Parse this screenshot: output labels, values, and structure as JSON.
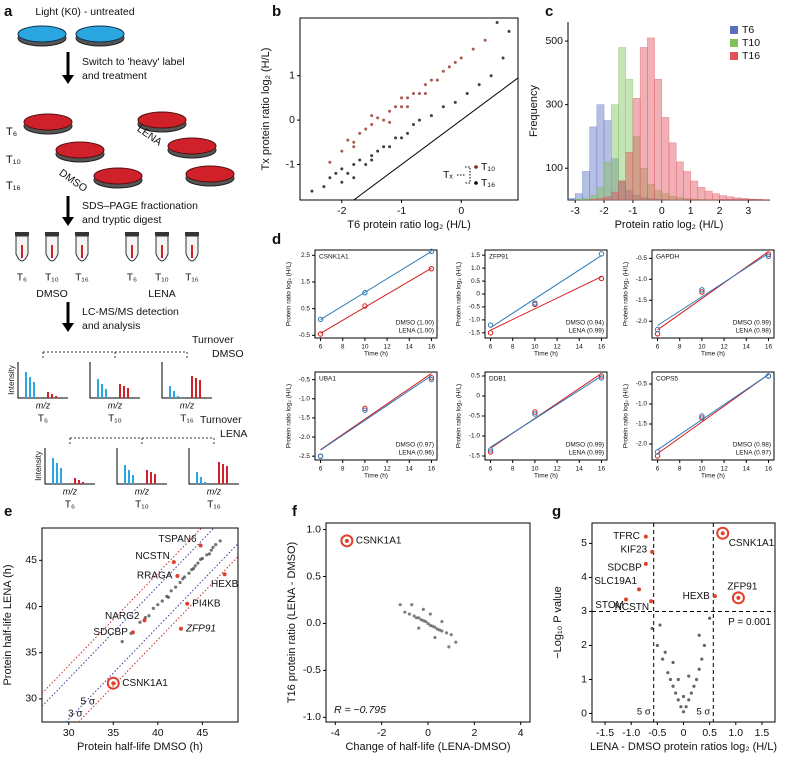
{
  "panel_labels": [
    "a",
    "b",
    "c",
    "d",
    "e",
    "f",
    "g"
  ],
  "diagram": {
    "step1": "Light (K0) - untreated",
    "step2": [
      "Switch to 'heavy' label",
      "and treatment"
    ],
    "timepoints": [
      "T₆",
      "T₁₀",
      "T₁₆"
    ],
    "treatments": [
      "DMSO",
      "LENA"
    ],
    "step3": [
      "SDS–PAGE fractionation",
      "and tryptic digest"
    ],
    "step4": [
      "LC-MS/MS detection",
      "and analysis"
    ],
    "turnover_dmso": [
      "Turnover",
      "DMSO"
    ],
    "turnover_lena": [
      "Turnover",
      "LENA"
    ],
    "spectrum_ylabel": "Intensity",
    "spectrum_xlabel": "m/z"
  },
  "chart_data": [
    {
      "type": "scatter",
      "xlabel": "T6 protein ratio log₂ (H/L)",
      "ylabel": "Tx protein ratio log₂ (H/L)",
      "xlim": [
        -2.7,
        0.95
      ],
      "ylim": [
        -1.8,
        2.3
      ],
      "xticks": [
        -2,
        -1,
        0
      ],
      "yticks": [
        -1,
        0,
        1
      ],
      "diagonal": true,
      "legend_title": "Tₓ",
      "series": [
        {
          "name": "T₁₀",
          "color": "#8b2414",
          "x": [
            -2.2,
            -2.0,
            -1.9,
            -1.8,
            -1.7,
            -1.6,
            -1.5,
            -1.4,
            -1.3,
            -1.2,
            -1.1,
            -1.0,
            -0.9,
            -0.8,
            -0.7,
            -0.6,
            -0.5,
            -0.4,
            -0.3,
            -0.2,
            -0.1,
            0.0,
            0.2,
            0.4,
            -1.5,
            -1.2,
            -0.9,
            -1.8,
            -0.6,
            -1.0
          ],
          "values": [
            -0.95,
            -0.7,
            -0.45,
            -0.5,
            -0.3,
            -0.2,
            -0.1,
            0.05,
            0.0,
            0.2,
            0.3,
            0.3,
            0.5,
            0.6,
            0.6,
            0.8,
            0.9,
            0.9,
            1.1,
            1.2,
            1.3,
            1.4,
            1.6,
            1.8,
            0.1,
            -0.05,
            0.3,
            -0.6,
            0.6,
            0.5
          ]
        },
        {
          "name": "T₁₆",
          "color": "#000000",
          "x": [
            -2.5,
            -2.3,
            -2.2,
            -2.1,
            -2.0,
            -1.9,
            -1.8,
            -1.7,
            -1.6,
            -1.5,
            -1.4,
            -1.3,
            -1.2,
            -1.1,
            -1.0,
            -0.9,
            -0.8,
            -0.7,
            -0.5,
            -0.3,
            -0.1,
            0.1,
            0.3,
            0.5,
            0.7,
            -1.8,
            -1.5,
            -2.0,
            0.6,
            0.8
          ],
          "values": [
            -1.6,
            -1.5,
            -1.3,
            -1.2,
            -1.1,
            -1.2,
            -1.0,
            -0.9,
            -1.0,
            -0.8,
            -0.7,
            -0.6,
            -0.6,
            -0.4,
            -0.4,
            -0.3,
            -0.1,
            0.0,
            0.1,
            0.3,
            0.4,
            0.6,
            0.8,
            1.0,
            1.4,
            -1.3,
            -0.9,
            -1.4,
            2.2,
            2.0
          ]
        }
      ]
    },
    {
      "type": "histogram",
      "xlabel": "Protein ratio log₂ (H/L)",
      "ylabel": "Frequency",
      "xlim": [
        -3.25,
        3.75
      ],
      "ylim": [
        0,
        560
      ],
      "xticks": [
        -3,
        -2,
        -1,
        0,
        1,
        2,
        3
      ],
      "yticks": [
        100,
        300,
        500
      ],
      "bins": [
        -3.25,
        -3.0,
        -2.75,
        -2.5,
        -2.25,
        -2.0,
        -1.75,
        -1.5,
        -1.25,
        -1.0,
        -0.75,
        -0.5,
        -0.25,
        0.0,
        0.25,
        0.5,
        0.75,
        1.0,
        1.25,
        1.5,
        1.75,
        2.0,
        2.25,
        2.5,
        2.75,
        3.0,
        3.25,
        3.5,
        3.75
      ],
      "series": [
        {
          "name": "T6",
          "color": "#5a6fc0",
          "values": [
            5,
            20,
            90,
            230,
            300,
            250,
            130,
            60,
            30,
            15,
            8,
            5,
            3,
            2,
            1,
            1,
            0,
            0,
            0,
            0,
            0,
            0,
            0,
            0,
            0,
            0,
            0,
            0
          ]
        },
        {
          "name": "T10",
          "color": "#7fc05a",
          "values": [
            0,
            2,
            5,
            15,
            40,
            120,
            300,
            480,
            380,
            200,
            100,
            50,
            30,
            20,
            12,
            8,
            5,
            3,
            2,
            1,
            1,
            0,
            0,
            0,
            0,
            0,
            0,
            0
          ]
        },
        {
          "name": "T16",
          "color": "#e0505a",
          "values": [
            0,
            0,
            0,
            2,
            5,
            10,
            25,
            60,
            150,
            320,
            480,
            510,
            380,
            260,
            180,
            120,
            90,
            60,
            40,
            28,
            20,
            14,
            10,
            7,
            5,
            3,
            2,
            1
          ]
        }
      ]
    },
    {
      "type": "line",
      "title": "CSNK1A1",
      "x": [
        6,
        10,
        16
      ],
      "xlim": [
        5.5,
        16.5
      ],
      "xticks": [
        6,
        8,
        10,
        12,
        14,
        16
      ],
      "ylim": [
        -0.6,
        2.7
      ],
      "yticks": [
        -0.5,
        0.5,
        1.5,
        2.5
      ],
      "xlabel": "Time (h)",
      "ylabel": "Protein ratio log₂ (H/L)",
      "series": [
        {
          "name": "DMSO (1.00)",
          "color": "#d7191c",
          "values": [
            -0.45,
            0.6,
            2.0
          ]
        },
        {
          "name": "LENA (1.00)",
          "color": "#2c7bb6",
          "values": [
            0.1,
            1.1,
            2.65
          ]
        }
      ]
    },
    {
      "type": "line",
      "title": "ZFP91",
      "x": [
        6,
        10,
        16
      ],
      "xlim": [
        5.5,
        16.5
      ],
      "xticks": [
        6,
        8,
        10,
        12,
        14,
        16
      ],
      "ylim": [
        -1.7,
        1.7
      ],
      "yticks": [
        {
          "value": -1.5,
          "label": "-1.5"
        },
        {
          "value": -1,
          "label": "-1.0"
        },
        -0.5,
        0,
        0.5,
        {
          "value": 1,
          "label": "1.0"
        },
        1.5
      ],
      "xlabel": "Time (h)",
      "ylabel": "Protein ratio log₂ (H/L)",
      "series": [
        {
          "name": "DMSO (0.94)",
          "color": "#d7191c",
          "values": [
            -1.5,
            -0.4,
            0.6
          ]
        },
        {
          "name": "LENA (0.99)",
          "color": "#2c7bb6",
          "values": [
            -1.2,
            -0.35,
            1.55
          ]
        }
      ]
    },
    {
      "type": "line",
      "title": "GAPDH",
      "x": [
        6,
        10,
        16
      ],
      "xlim": [
        5.5,
        16.5
      ],
      "xticks": [
        6,
        8,
        10,
        12,
        14,
        16
      ],
      "ylim": [
        -2.4,
        -0.3
      ],
      "yticks": [
        {
          "value": -2,
          "label": "-2.0"
        },
        -1.5,
        {
          "value": -1,
          "label": "-1.0"
        },
        -0.5
      ],
      "xlabel": "Time (h)",
      "ylabel": "Protein ratio log₂ (H/L)",
      "series": [
        {
          "name": "DMSO (0.99)",
          "color": "#d7191c",
          "values": [
            -2.3,
            -1.3,
            -0.4
          ]
        },
        {
          "name": "LENA (0.98)",
          "color": "#2c7bb6",
          "values": [
            -2.2,
            -1.25,
            -0.45
          ]
        }
      ]
    },
    {
      "type": "line",
      "title": "UBA1",
      "x": [
        6,
        10,
        16
      ],
      "xlim": [
        5.5,
        16.5
      ],
      "xticks": [
        6,
        8,
        10,
        12,
        14,
        16
      ],
      "ylim": [
        -2.6,
        -0.3
      ],
      "yticks": [
        -2.5,
        {
          "value": -2,
          "label": "-2.0"
        },
        -1.5,
        {
          "value": -1,
          "label": "-1.0"
        },
        -0.5
      ],
      "xlabel": "Time (h)",
      "ylabel": "Protein ratio log₂ (H/L)",
      "series": [
        {
          "name": "DMSO (0.97)",
          "color": "#d7191c",
          "values": [
            -2.5,
            -1.25,
            -0.45
          ]
        },
        {
          "name": "LENA (0.96)",
          "color": "#2c7bb6",
          "values": [
            -2.5,
            -1.3,
            -0.5
          ]
        }
      ]
    },
    {
      "type": "line",
      "title": "DDB1",
      "x": [
        6,
        10,
        16
      ],
      "xlim": [
        5.5,
        16.5
      ],
      "xticks": [
        6,
        8,
        10,
        12,
        14,
        16
      ],
      "ylim": [
        -1.6,
        0.6
      ],
      "yticks": [
        -1.5,
        {
          "value": -1,
          "label": "-1.0"
        },
        -0.5,
        0,
        0.5
      ],
      "xlabel": "Time (h)",
      "ylabel": "Protein ratio log₂ (H/L)",
      "series": [
        {
          "name": "DMSO (0.99)",
          "color": "#d7191c",
          "values": [
            -1.4,
            -0.4,
            0.5
          ]
        },
        {
          "name": "LENA (0.99)",
          "color": "#2c7bb6",
          "values": [
            -1.35,
            -0.45,
            0.45
          ]
        }
      ]
    },
    {
      "type": "line",
      "title": "COPS5",
      "x": [
        6,
        10,
        16
      ],
      "xlim": [
        5.5,
        16.5
      ],
      "xticks": [
        6,
        8,
        10,
        12,
        14,
        16
      ],
      "ylim": [
        -2.4,
        -0.2
      ],
      "yticks": [
        {
          "value": -2,
          "label": "-2.0"
        },
        -1.5,
        {
          "value": -1,
          "label": "-1.0"
        },
        -0.5
      ],
      "xlabel": "Time (h)",
      "ylabel": "Protein ratio log₂ (H/L)",
      "series": [
        {
          "name": "DMSO (0.98)",
          "color": "#d7191c",
          "values": [
            -2.3,
            -1.35,
            -0.3
          ]
        },
        {
          "name": "LENA (0.97)",
          "color": "#2c7bb6",
          "values": [
            -2.2,
            -1.3,
            -0.3
          ]
        }
      ]
    },
    {
      "type": "scatter",
      "xlabel": "Protein half-life DMSO (h)",
      "ylabel": "Protein half-life LENA (h)",
      "xlim": [
        27,
        49
      ],
      "ylim": [
        27.5,
        48.5
      ],
      "xticks": [
        30,
        35,
        40,
        45
      ],
      "yticks": [
        30,
        35,
        40,
        45
      ],
      "color": "#444444",
      "x": [
        36,
        37,
        38,
        39,
        40,
        40.5,
        41,
        41.5,
        42,
        42.5,
        43,
        43.5,
        44,
        44.5,
        45,
        45.5,
        46,
        46.5,
        47,
        39.5,
        41.2,
        43.8,
        44.8,
        45.8,
        42.8,
        38.6,
        46.2,
        44.2
      ],
      "values": [
        36.2,
        37.1,
        38.3,
        39.0,
        40.2,
        40.6,
        41.1,
        41.7,
        42.1,
        42.6,
        43.2,
        43.6,
        44.1,
        44.7,
        45.2,
        45.6,
        46.1,
        46.7,
        47.1,
        39.8,
        41.0,
        44.0,
        45.1,
        45.7,
        43.0,
        38.8,
        46.4,
        44.4
      ],
      "reference_lines": [
        {
          "label": "3 σ",
          "offset": 2.2,
          "color": "#3a3aa0"
        },
        {
          "label": "5 σ",
          "offset": 3.6,
          "color": "#cc2a2a"
        }
      ],
      "highlights": [
        {
          "label": "TSPAN6",
          "x": 44.8,
          "y": 46.6,
          "color": "#e0402a"
        },
        {
          "label": "NCSTN",
          "x": 41.8,
          "y": 44.8,
          "color": "#e0402a"
        },
        {
          "label": "RRAGA",
          "x": 42.2,
          "y": 43.3,
          "color": "#e0402a"
        },
        {
          "label": "HEXB",
          "x": 47.5,
          "y": 43.5,
          "color": "#e0402a"
        },
        {
          "label": "PI4KB",
          "x": 43.3,
          "y": 40.3,
          "color": "#e0402a"
        },
        {
          "label": "NARG2",
          "x": 38.5,
          "y": 38.5,
          "color": "#e0402a"
        },
        {
          "label": "SDCBP",
          "x": 37.2,
          "y": 37.2,
          "color": "#e0402a"
        },
        {
          "label": "ZFP91",
          "x": 42.6,
          "y": 37.6,
          "color": "#e0402a",
          "label_color": "#666666",
          "italic": true
        },
        {
          "label": "CSNK1A1",
          "x": 35,
          "y": 31.7,
          "color": "#e0402a",
          "circled": true
        }
      ]
    },
    {
      "type": "scatter",
      "xlabel": "Change of half-life (LENA-DMSO)",
      "ylabel": "T16 protein ratio (LENA - DMSO)",
      "xlim": [
        -4.4,
        4.4
      ],
      "ylim": [
        -1.05,
        1.07
      ],
      "xticks": [
        -4,
        -2,
        0,
        2,
        4
      ],
      "yticks": [
        {
          "value": -1,
          "label": "-1.0"
        },
        -0.5,
        {
          "value": 0,
          "label": "0.0"
        },
        0.5,
        {
          "value": 1,
          "label": "1.0"
        }
      ],
      "color": "#555555",
      "x": [
        -1,
        -0.8,
        -0.6,
        -0.5,
        -0.4,
        -0.3,
        -0.2,
        -0.1,
        0,
        0.1,
        0.2,
        0.3,
        0.4,
        0.5,
        0.6,
        0.8,
        1.0,
        -1.2,
        1.2,
        -0.2,
        0.3,
        0.1,
        -0.4,
        0.6,
        -0.7,
        0.9
      ],
      "values": [
        0.12,
        0.1,
        0.08,
        0.06,
        0.06,
        0.04,
        0.03,
        0.02,
        0,
        -0.02,
        -0.03,
        -0.04,
        -0.06,
        -0.07,
        -0.08,
        -0.1,
        -0.12,
        0.2,
        -0.2,
        0.15,
        -0.15,
        0.1,
        -0.05,
        0.02,
        0.2,
        -0.25
      ],
      "annotation": "R = −0.795",
      "highlights": [
        {
          "label": "CSNK1A1",
          "x": -3.5,
          "y": 0.88,
          "color": "#e0402a",
          "circled": true
        }
      ]
    },
    {
      "type": "scatter",
      "xlabel": "LENA - DMSO protein ratios log₂ (H/L)",
      "ylabel": "−Log₁₀ P value",
      "xlim": [
        -1.75,
        1.75
      ],
      "ylim": [
        -0.25,
        5.6
      ],
      "xticks": [
        -1.5,
        {
          "value": -1,
          "label": "-1.0"
        },
        -0.5,
        0,
        0.5,
        {
          "value": 1,
          "label": "1.0"
        },
        1.5
      ],
      "yticks": [
        0,
        1,
        2,
        3,
        4,
        5
      ],
      "color": "#333333",
      "x": [
        -0.6,
        -0.5,
        -0.4,
        -0.3,
        -0.25,
        -0.2,
        -0.15,
        -0.1,
        -0.05,
        0,
        0.05,
        0.1,
        0.15,
        0.2,
        0.25,
        0.3,
        0.35,
        0.4,
        -0.35,
        -0.45,
        0.3,
        -0.2,
        0.1,
        -0.1,
        0.0,
        0.5
      ],
      "values": [
        2.5,
        2.0,
        1.6,
        1.2,
        1.0,
        0.8,
        0.6,
        0.4,
        0.2,
        0.05,
        0.2,
        0.4,
        0.6,
        0.8,
        1.0,
        1.3,
        1.6,
        2.0,
        1.8,
        2.6,
        2.3,
        1.5,
        1.1,
        1.0,
        0.5,
        2.8
      ],
      "reference_lines": [
        {
          "axis": "x",
          "value": -0.57,
          "label": "5 σ"
        },
        {
          "axis": "x",
          "value": 0.57,
          "label": "5 σ"
        },
        {
          "axis": "y",
          "value": 3,
          "label": "P = 0.001"
        }
      ],
      "highlights": [
        {
          "label": "TFRC",
          "x": -0.72,
          "y": 5.2,
          "color": "#e0402a"
        },
        {
          "label": "KIF23",
          "x": -0.6,
          "y": 4.75,
          "color": "#e0402a"
        },
        {
          "label": "SDCBP",
          "x": -0.72,
          "y": 4.4,
          "color": "#e0402a"
        },
        {
          "label": "SLC19A1",
          "x": -0.85,
          "y": 3.65,
          "color": "#e0402a"
        },
        {
          "label": "STOM",
          "x": -1.1,
          "y": 3.35,
          "color": "#e0402a"
        },
        {
          "label": "NCSTN",
          "x": -0.62,
          "y": 3.3,
          "color": "#e0402a"
        },
        {
          "label": "HEXB",
          "x": 0.6,
          "y": 3.45,
          "color": "#e0402a"
        },
        {
          "label": "CSNK1A1",
          "x": 0.75,
          "y": 5.3,
          "color": "#e0402a",
          "circled": true
        },
        {
          "label": "ZFP91",
          "x": 1.05,
          "y": 3.4,
          "color": "#e0402a",
          "circled": true
        }
      ]
    }
  ]
}
